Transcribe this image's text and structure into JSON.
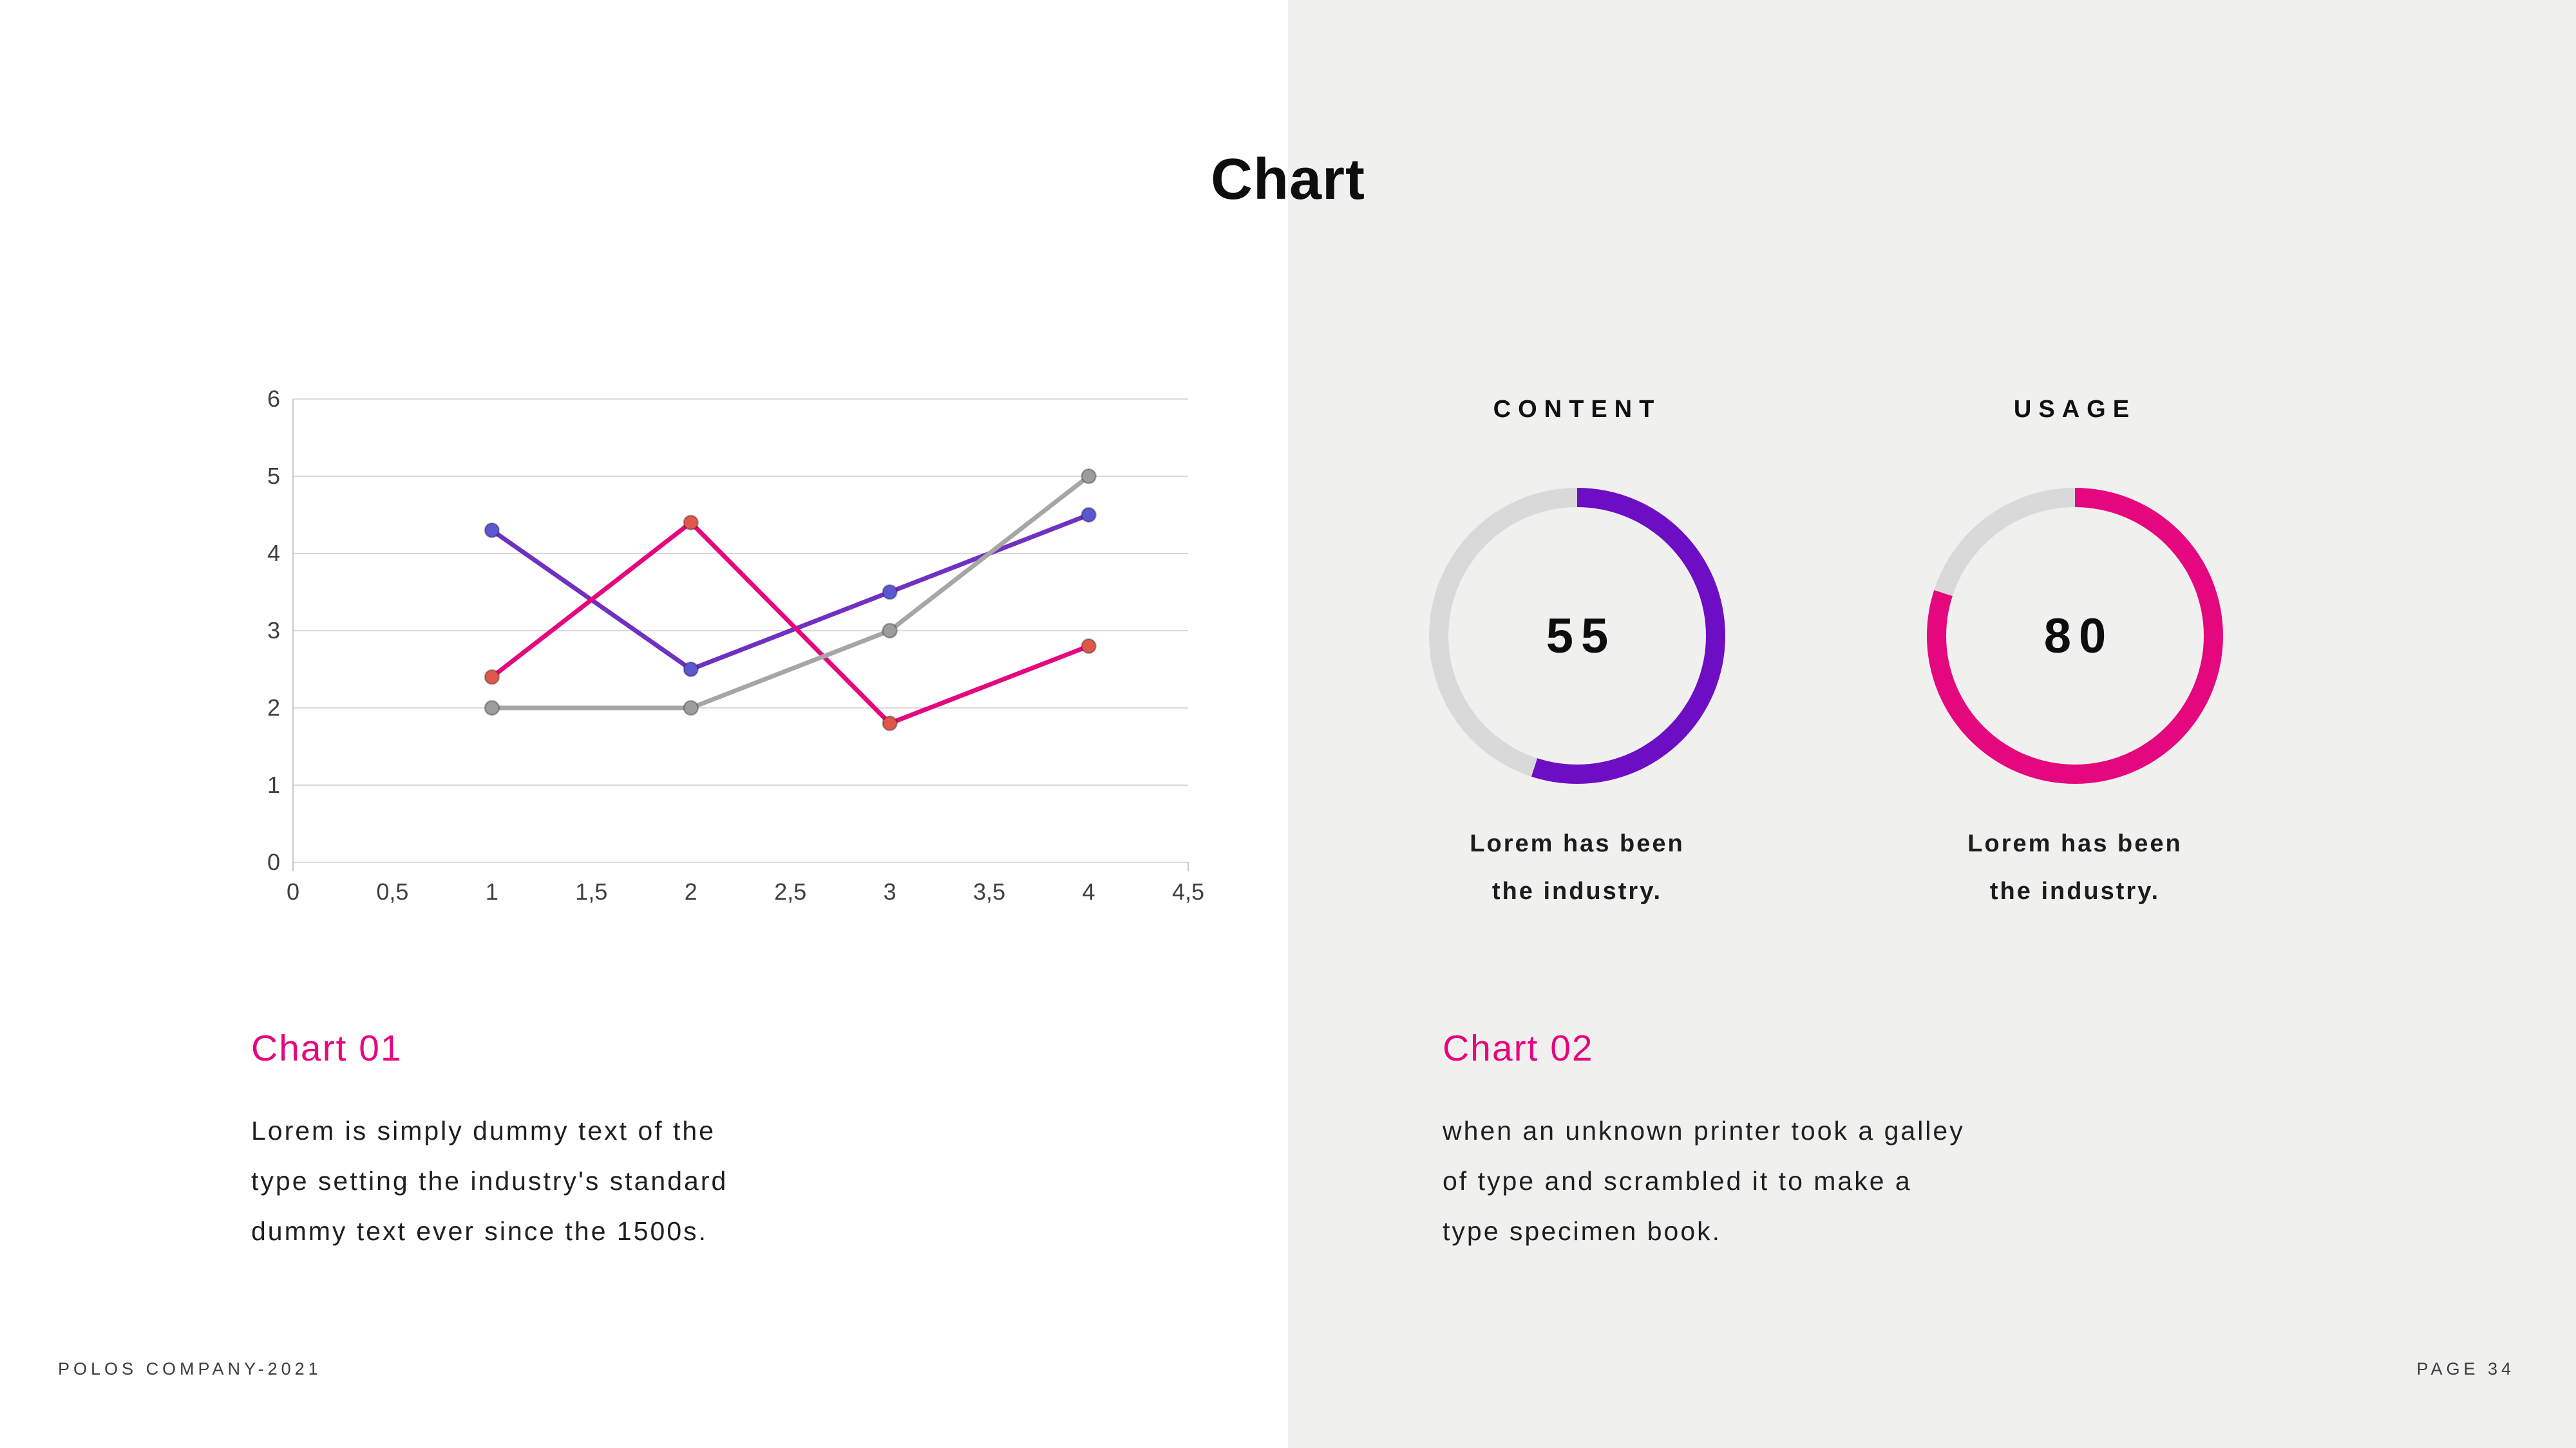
{
  "slide": {
    "title": "Chart",
    "footer_left": "POLOS COMPANY-2021",
    "footer_right": "PAGE 34"
  },
  "left_block": {
    "heading": "Chart 01",
    "body_lines": [
      "Lorem is simply dummy text of the",
      "type setting the industry's standard",
      "dummy text ever since the 1500s."
    ]
  },
  "right_block": {
    "heading": "Chart 02",
    "body_lines": [
      "when an unknown printer took a galley",
      "of type and scrambled it to make a",
      "type specimen book."
    ]
  },
  "colors": {
    "accent_pink": "#e5077e",
    "accent_purple": "#6e0ec4",
    "panel_gray": "#f0f0ef",
    "grid_gray": "#dadada"
  },
  "chart_data": [
    {
      "type": "line",
      "x": [
        1,
        2,
        3,
        4
      ],
      "series": [
        {
          "name": "purple-series",
          "color": "#7030c0",
          "marker": "#5b57d1",
          "values": [
            4.3,
            2.5,
            3.5,
            4.5
          ]
        },
        {
          "name": "pink-series",
          "color": "#e5077e",
          "marker": "#e0584a",
          "values": [
            2.4,
            4.4,
            1.8,
            2.8
          ]
        },
        {
          "name": "gray-series",
          "color": "#a6a6a6",
          "marker": "#9c9c9c",
          "values": [
            2.0,
            2.0,
            3.0,
            5.0
          ]
        }
      ],
      "xlim": [
        0,
        4.5
      ],
      "ylim": [
        0,
        6
      ],
      "x_ticks": [
        "0",
        "0,5",
        "1",
        "1,5",
        "2",
        "2,5",
        "3",
        "3,5",
        "4",
        "4,5"
      ],
      "y_ticks": [
        "0",
        "1",
        "2",
        "3",
        "4",
        "5",
        "6"
      ],
      "grid": "horizontal",
      "legend": "none",
      "title": ""
    },
    {
      "type": "donut",
      "label": "CONTENT",
      "value": 55,
      "max": 100,
      "color": "#6e0ec4",
      "track_color": "#d9d9d9",
      "caption_lines": [
        "Lorem has been",
        "the industry."
      ]
    },
    {
      "type": "donut",
      "label": "USAGE",
      "value": 80,
      "max": 100,
      "color": "#e5077e",
      "track_color": "#d9d9d9",
      "caption_lines": [
        "Lorem has been",
        "the industry."
      ]
    }
  ]
}
